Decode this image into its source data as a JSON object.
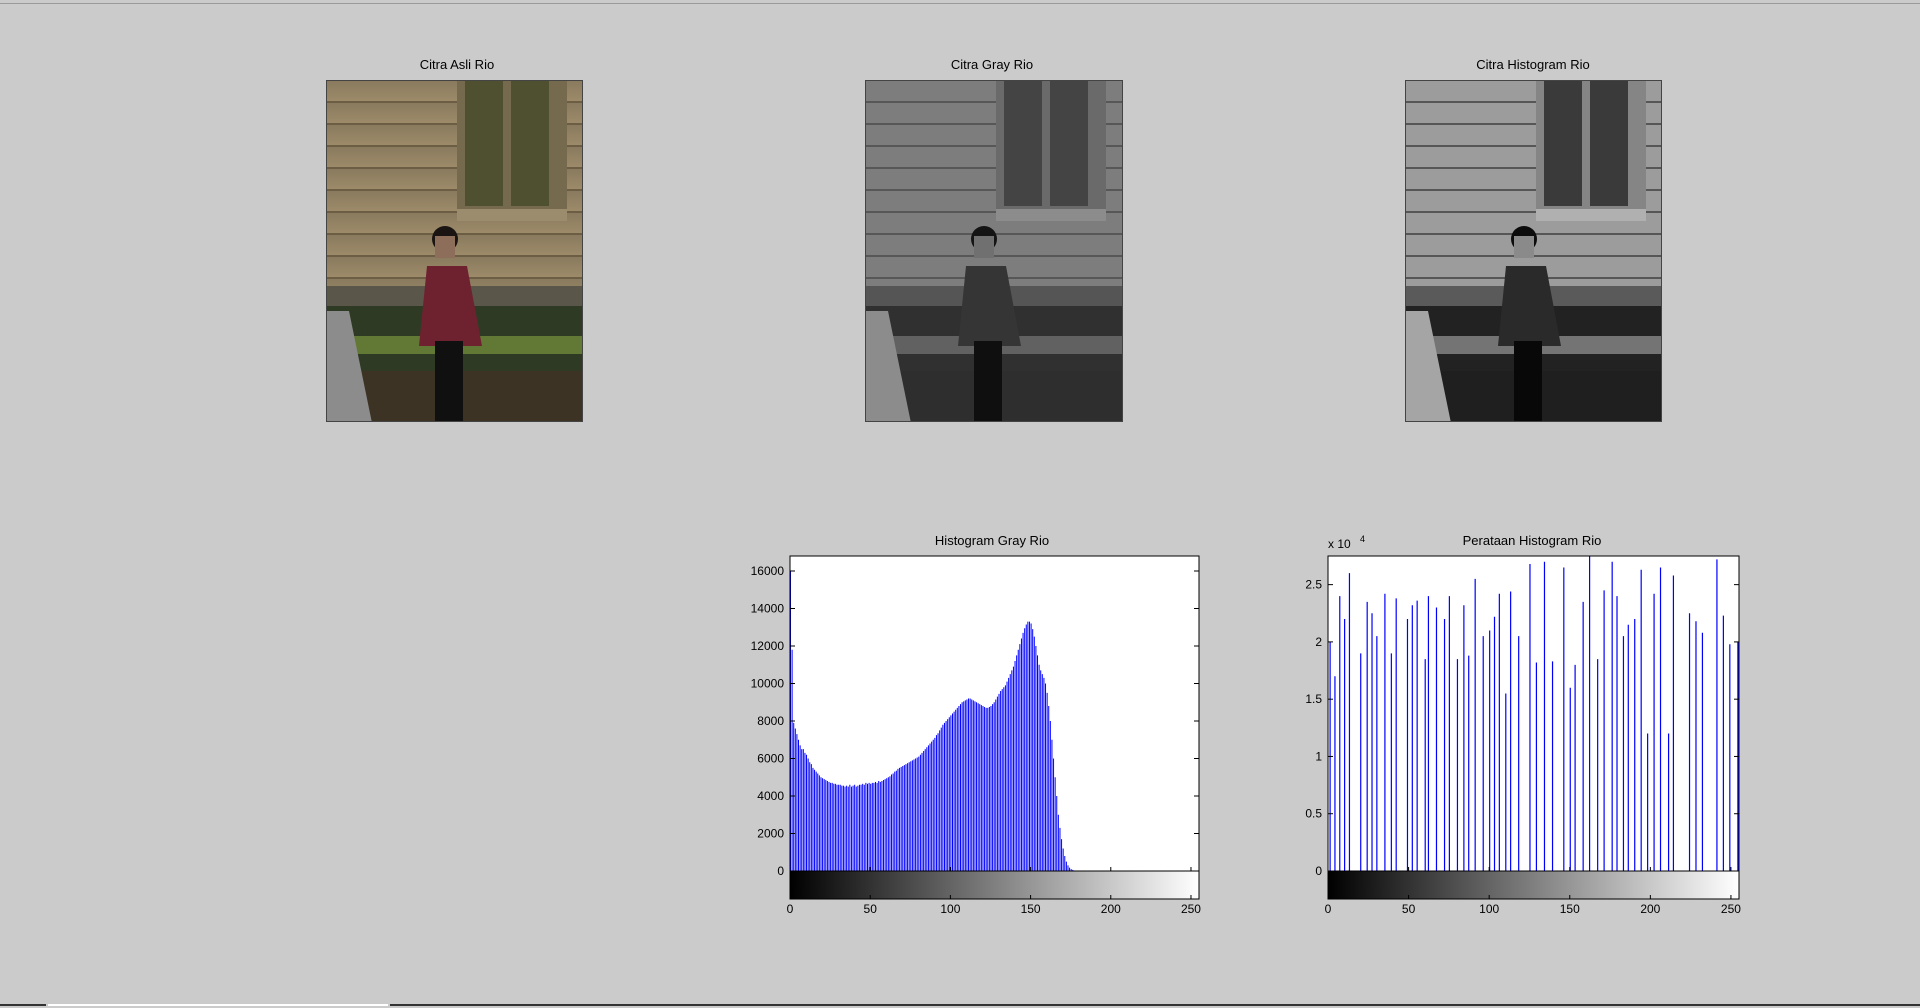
{
  "panels": {
    "original": {
      "title": "Citra Asli Rio"
    },
    "gray": {
      "title": "Citra Gray Rio"
    },
    "equalized": {
      "title": "Citra Histogram Rio"
    },
    "histogram_gray": {
      "title": "Histogram Gray Rio"
    },
    "histogram_equalized": {
      "title": "Perataan Histogram Rio",
      "exponent_label": "x 10",
      "exponent_power": "4"
    }
  },
  "colors": {
    "figure_background": "#cbcbcb",
    "bar_color": "#0000ff",
    "axes_background": "#ffffff"
  },
  "chart_data": [
    {
      "type": "bar",
      "title": "Histogram Gray Rio",
      "xlabel": "",
      "ylabel": "",
      "xlim": [
        0,
        255
      ],
      "ylim": [
        0,
        16800
      ],
      "x_ticks": [
        0,
        50,
        100,
        150,
        200,
        250
      ],
      "y_ticks": [
        0,
        2000,
        4000,
        6000,
        8000,
        10000,
        12000,
        14000,
        16000
      ],
      "colorbar": "grayscale",
      "bins": {
        "start": 0,
        "step": 1,
        "values": [
          16000,
          11800,
          7900,
          7600,
          7300,
          7000,
          6700,
          6500,
          6500,
          6300,
          6200,
          6000,
          5800,
          5700,
          5500,
          5400,
          5300,
          5200,
          5100,
          5000,
          4950,
          4900,
          4850,
          4800,
          4750,
          4700,
          4700,
          4650,
          4650,
          4600,
          4600,
          4600,
          4550,
          4550,
          4500,
          4550,
          4500,
          4600,
          4500,
          4550,
          4600,
          4500,
          4550,
          4600,
          4600,
          4650,
          4600,
          4700,
          4650,
          4700,
          4650,
          4700,
          4700,
          4750,
          4700,
          4800,
          4750,
          4800,
          4850,
          4900,
          4950,
          5000,
          5050,
          5150,
          5200,
          5300,
          5350,
          5450,
          5500,
          5550,
          5600,
          5650,
          5700,
          5750,
          5800,
          5850,
          5900,
          5950,
          6000,
          6050,
          6100,
          6200,
          6300,
          6400,
          6500,
          6600,
          6700,
          6800,
          6900,
          7000,
          7100,
          7250,
          7350,
          7500,
          7650,
          7800,
          7900,
          8000,
          8100,
          8200,
          8300,
          8400,
          8500,
          8600,
          8700,
          8800,
          8900,
          9000,
          9050,
          9100,
          9150,
          9200,
          9200,
          9150,
          9100,
          9050,
          9000,
          8950,
          8900,
          8850,
          8800,
          8750,
          8700,
          8700,
          8750,
          8800,
          8900,
          9000,
          9150,
          9300,
          9450,
          9600,
          9700,
          9800,
          9900,
          10100,
          10300,
          10500,
          10700,
          10900,
          11200,
          11500,
          11800,
          12100,
          12400,
          12700,
          12950,
          13150,
          13300,
          13300,
          13200,
          12900,
          12500,
          12000,
          11500,
          11000,
          10700,
          10500,
          10300,
          10000,
          9500,
          8800,
          8000,
          7000,
          6000,
          5000,
          4000,
          3000,
          2300,
          1700,
          1200,
          800,
          500,
          300,
          180,
          100,
          60,
          30,
          15,
          8,
          4,
          2,
          1,
          0,
          0,
          0,
          0,
          0,
          0,
          0,
          0,
          0,
          0,
          0,
          0,
          0,
          0,
          0,
          0,
          0,
          0,
          0,
          0,
          0,
          0,
          0,
          0,
          0,
          0,
          0,
          0,
          0,
          0,
          0,
          0,
          0,
          0,
          0,
          0,
          0,
          0,
          0,
          0,
          0,
          0,
          0,
          0,
          0,
          0,
          0,
          0,
          0,
          0,
          0,
          0,
          0,
          0,
          0,
          0,
          0,
          0,
          0,
          0,
          0,
          0,
          0,
          0,
          0,
          0,
          0,
          0,
          0,
          0,
          0,
          0,
          0,
          0,
          0,
          0,
          0,
          0,
          0,
          0
        ]
      }
    },
    {
      "type": "bar",
      "title": "Perataan Histogram Rio",
      "xlabel": "",
      "ylabel": "",
      "xlim": [
        0,
        255
      ],
      "ylim": [
        0,
        27500
      ],
      "x_ticks": [
        0,
        50,
        100,
        150,
        200,
        250
      ],
      "y_ticks": [
        0,
        0.5,
        1,
        1.5,
        2,
        2.5
      ],
      "y_tick_multiplier": 10000,
      "colorbar": "grayscale",
      "bars": [
        {
          "x": 1,
          "y": 20000
        },
        {
          "x": 4,
          "y": 17000
        },
        {
          "x": 7,
          "y": 24000
        },
        {
          "x": 10,
          "y": 22000
        },
        {
          "x": 13,
          "y": 26000
        },
        {
          "x": 16,
          "y": 0
        },
        {
          "x": 18,
          "y": 0
        },
        {
          "x": 20,
          "y": 19000
        },
        {
          "x": 24,
          "y": 23500
        },
        {
          "x": 27,
          "y": 22500
        },
        {
          "x": 30,
          "y": 20500
        },
        {
          "x": 35,
          "y": 24200
        },
        {
          "x": 39,
          "y": 19000
        },
        {
          "x": 42,
          "y": 23800
        },
        {
          "x": 47,
          "y": 0
        },
        {
          "x": 49,
          "y": 22000
        },
        {
          "x": 52,
          "y": 23200
        },
        {
          "x": 55,
          "y": 23600
        },
        {
          "x": 60,
          "y": 18500
        },
        {
          "x": 62,
          "y": 24000
        },
        {
          "x": 67,
          "y": 23000
        },
        {
          "x": 70,
          "y": 0
        },
        {
          "x": 72,
          "y": 22000
        },
        {
          "x": 75,
          "y": 24000
        },
        {
          "x": 80,
          "y": 18500
        },
        {
          "x": 84,
          "y": 23200
        },
        {
          "x": 87,
          "y": 18800
        },
        {
          "x": 91,
          "y": 25500
        },
        {
          "x": 96,
          "y": 20500
        },
        {
          "x": 100,
          "y": 21000
        },
        {
          "x": 103,
          "y": 22200
        },
        {
          "x": 106,
          "y": 24200
        },
        {
          "x": 110,
          "y": 15500
        },
        {
          "x": 113,
          "y": 24400
        },
        {
          "x": 118,
          "y": 20500
        },
        {
          "x": 122,
          "y": 0
        },
        {
          "x": 125,
          "y": 26800
        },
        {
          "x": 129,
          "y": 18200
        },
        {
          "x": 134,
          "y": 27000
        },
        {
          "x": 139,
          "y": 18300
        },
        {
          "x": 143,
          "y": 0
        },
        {
          "x": 146,
          "y": 26500
        },
        {
          "x": 150,
          "y": 16000
        },
        {
          "x": 153,
          "y": 18000
        },
        {
          "x": 158,
          "y": 23500
        },
        {
          "x": 162,
          "y": 27500
        },
        {
          "x": 167,
          "y": 18500
        },
        {
          "x": 171,
          "y": 24500
        },
        {
          "x": 176,
          "y": 27000
        },
        {
          "x": 179,
          "y": 24000
        },
        {
          "x": 183,
          "y": 20500
        },
        {
          "x": 186,
          "y": 21500
        },
        {
          "x": 190,
          "y": 22000
        },
        {
          "x": 194,
          "y": 26300
        },
        {
          "x": 198,
          "y": 12000
        },
        {
          "x": 202,
          "y": 24200
        },
        {
          "x": 206,
          "y": 26500
        },
        {
          "x": 211,
          "y": 12000
        },
        {
          "x": 214,
          "y": 25800
        },
        {
          "x": 220,
          "y": 0
        },
        {
          "x": 224,
          "y": 22500
        },
        {
          "x": 228,
          "y": 21800
        },
        {
          "x": 232,
          "y": 20800
        },
        {
          "x": 238,
          "y": 0
        },
        {
          "x": 241,
          "y": 27200
        },
        {
          "x": 245,
          "y": 22300
        },
        {
          "x": 249,
          "y": 19800
        },
        {
          "x": 254,
          "y": 20000
        }
      ]
    }
  ]
}
